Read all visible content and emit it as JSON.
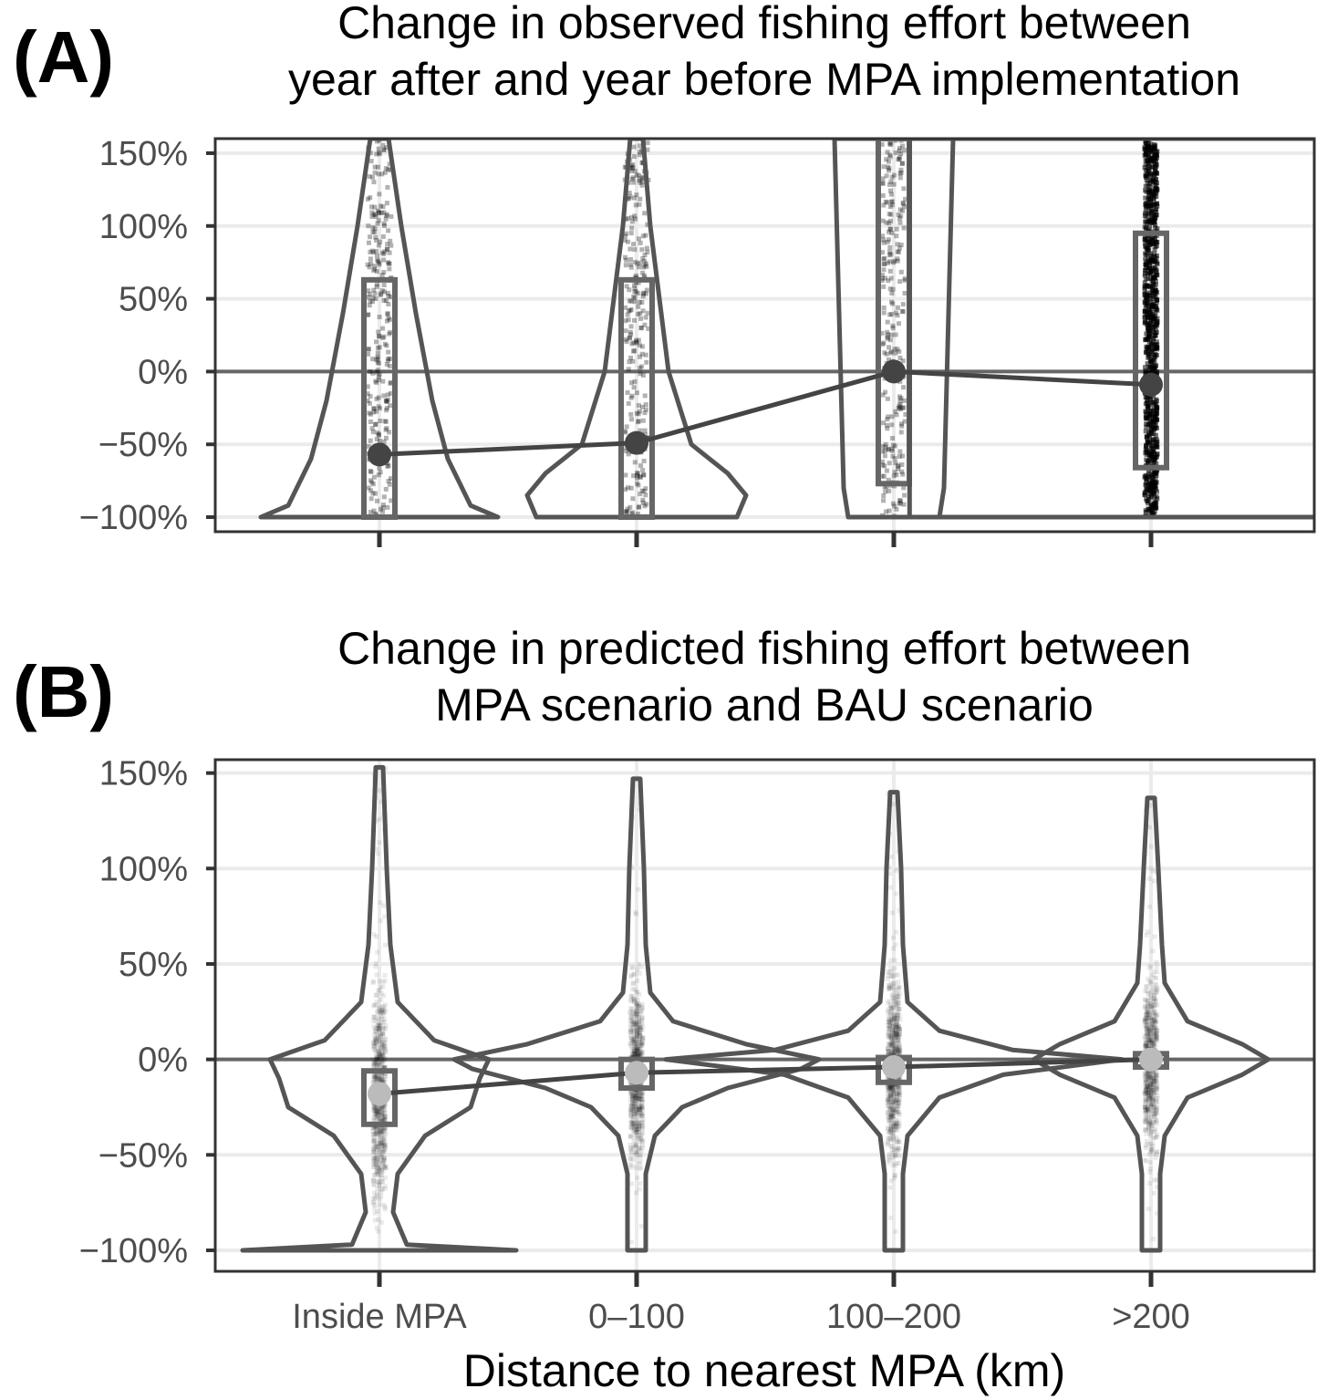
{
  "chart_data": [
    {
      "type": "violin",
      "panel_label": "(A)",
      "title_lines": [
        "Change in observed fishing effort between",
        "year after and year before MPA implementation"
      ],
      "xlabel": "",
      "ylabel": "",
      "categories": [
        "Inside MPA",
        "0–100",
        "100–200",
        ">200"
      ],
      "show_xtick_labels": false,
      "ylim": [
        -110,
        160
      ],
      "yticks": [
        -100,
        -50,
        0,
        50,
        100,
        150
      ],
      "ytick_labels": [
        "−100%",
        "−50%",
        "0%",
        "50%",
        "100%",
        "150%"
      ],
      "reference_line_y": 0,
      "mean_values": [
        -57,
        -49,
        0,
        -9
      ],
      "boxes": [
        {
          "category": "Inside MPA",
          "q1": -100,
          "q3": 63
        },
        {
          "category": "0–100",
          "q1": -100,
          "q3": 63
        },
        {
          "category": "100–200",
          "q1": -77,
          "q3": 160
        },
        {
          "category": ">200",
          "q1": -66,
          "q3": 95
        }
      ],
      "violins": [
        {
          "category": "Inside MPA",
          "profile": [
            [
              -100,
              0.13
            ],
            [
              -92,
              0.1
            ],
            [
              -60,
              0.075
            ],
            [
              -20,
              0.058
            ],
            [
              40,
              0.04
            ],
            [
              100,
              0.024
            ],
            [
              160,
              0.01
            ]
          ]
        },
        {
          "category": "0–100",
          "profile": [
            [
              -100,
              0.11
            ],
            [
              -85,
              0.12
            ],
            [
              -70,
              0.1
            ],
            [
              -50,
              0.06
            ],
            [
              0,
              0.035
            ],
            [
              50,
              0.025
            ],
            [
              100,
              0.015
            ],
            [
              160,
              0.007
            ]
          ]
        },
        {
          "category": "100–200",
          "profile": [
            [
              -100,
              0.05
            ],
            [
              -80,
              0.055
            ],
            [
              160,
              0.065
            ]
          ]
        },
        {
          "category": ">200",
          "profile": [
            [
              -100,
              0.45
            ],
            [
              160,
              0.45
            ]
          ]
        }
      ],
      "mean_marker_color": "#444444",
      "grid": true
    },
    {
      "type": "violin",
      "panel_label": "(B)",
      "title_lines": [
        "Change in predicted fishing effort between",
        "MPA scenario and BAU scenario"
      ],
      "xlabel": "Distance to nearest MPA (km)",
      "ylabel": "",
      "categories": [
        "Inside MPA",
        "0–100",
        "100–200",
        ">200"
      ],
      "show_xtick_labels": true,
      "ylim": [
        -111,
        157
      ],
      "yticks": [
        -100,
        -50,
        0,
        50,
        100,
        150
      ],
      "ytick_labels": [
        "−100%",
        "−50%",
        "0%",
        "50%",
        "100%",
        "150%"
      ],
      "reference_line_y": 0,
      "mean_values": [
        -18,
        -7,
        -4,
        0
      ],
      "boxes": [
        {
          "category": "Inside MPA",
          "q1": -34,
          "q3": -6
        },
        {
          "category": "0–100",
          "q1": -15,
          "q3": 0
        },
        {
          "category": "100–200",
          "q1": -12,
          "q3": 1
        },
        {
          "category": ">200",
          "q1": -4,
          "q3": 3
        }
      ],
      "violins": [
        {
          "category": "Inside MPA",
          "profile": [
            [
              -100,
              0.15
            ],
            [
              -97,
              0.03
            ],
            [
              -80,
              0.015
            ],
            [
              -60,
              0.02
            ],
            [
              -40,
              0.05
            ],
            [
              -25,
              0.1
            ],
            [
              -10,
              0.11
            ],
            [
              0,
              0.12
            ],
            [
              10,
              0.06
            ],
            [
              30,
              0.02
            ],
            [
              60,
              0.012
            ],
            [
              100,
              0.008
            ],
            [
              153,
              0.004
            ]
          ]
        },
        {
          "category": "0–100",
          "profile": [
            [
              -100,
              0.01
            ],
            [
              -60,
              0.01
            ],
            [
              -40,
              0.02
            ],
            [
              -25,
              0.05
            ],
            [
              -15,
              0.1
            ],
            [
              -5,
              0.18
            ],
            [
              0,
              0.2
            ],
            [
              8,
              0.12
            ],
            [
              20,
              0.04
            ],
            [
              35,
              0.015
            ],
            [
              60,
              0.01
            ],
            [
              100,
              0.008
            ],
            [
              147,
              0.004
            ]
          ]
        },
        {
          "category": "100–200",
          "profile": [
            [
              -100,
              0.01
            ],
            [
              -60,
              0.01
            ],
            [
              -40,
              0.015
            ],
            [
              -20,
              0.05
            ],
            [
              -8,
              0.12
            ],
            [
              0,
              0.25
            ],
            [
              5,
              0.13
            ],
            [
              15,
              0.05
            ],
            [
              30,
              0.015
            ],
            [
              60,
              0.01
            ],
            [
              100,
              0.008
            ],
            [
              140,
              0.004
            ]
          ]
        },
        {
          "category": ">200",
          "profile": [
            [
              -100,
              0.01
            ],
            [
              -60,
              0.01
            ],
            [
              -40,
              0.015
            ],
            [
              -20,
              0.04
            ],
            [
              -8,
              0.1
            ],
            [
              0,
              0.45
            ],
            [
              8,
              0.1
            ],
            [
              20,
              0.04
            ],
            [
              40,
              0.015
            ],
            [
              60,
              0.012
            ],
            [
              100,
              0.008
            ],
            [
              137,
              0.004
            ]
          ]
        }
      ],
      "mean_marker_color": "#bbbbbb",
      "grid": true
    }
  ]
}
